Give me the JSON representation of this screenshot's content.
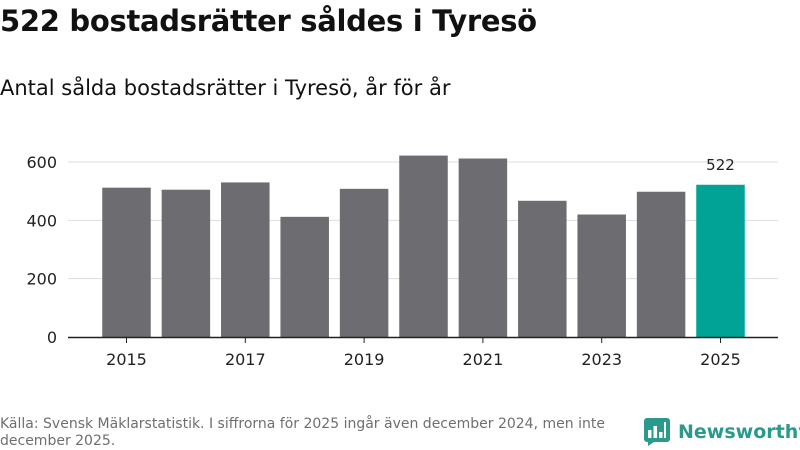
{
  "title": "522 bostadsrätter såldes i Tyresö",
  "subtitle": "Antal sålda bostadsrätter i Tyresö, år för år",
  "footer": {
    "source_note": "Källa: Svensk Mäklarstatistik. I siffrorna för 2025 ingår även december 2024, men inte december 2025."
  },
  "logo": {
    "icon": "newsworthy-bar-logo-icon",
    "text": "Newsworthy"
  },
  "colors": {
    "bar": "#6d6c71",
    "highlight": "#00a396",
    "grid": "#dddddd",
    "axis": "#222222",
    "brand": "#2a9a8c"
  },
  "chart_data": {
    "type": "bar",
    "categories": [
      "2015",
      "2016",
      "2017",
      "2018",
      "2019",
      "2020",
      "2021",
      "2022",
      "2023",
      "2024",
      "2025"
    ],
    "values": [
      512,
      505,
      530,
      412,
      508,
      622,
      612,
      467,
      420,
      498,
      522
    ],
    "tick_labels": [
      "2015",
      "",
      "2017",
      "",
      "2019",
      "",
      "2021",
      "",
      "2023",
      "",
      "2025"
    ],
    "highlight_index": 10,
    "highlight_label": "522",
    "yticks": [
      0,
      200,
      400,
      600
    ],
    "ylim": [
      0,
      640
    ],
    "grid": true,
    "xlabel": "",
    "ylabel": ""
  }
}
